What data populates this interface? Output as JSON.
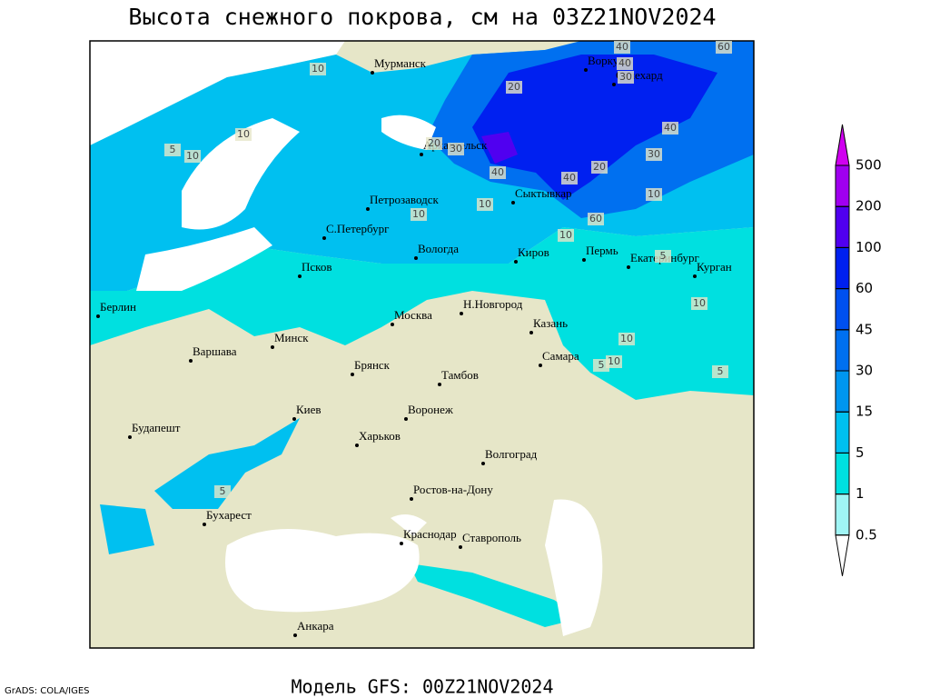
{
  "title": "Высота снежного покрова, см на 03Z21NOV2024",
  "footer": "Модель GFS: 00Z21NOV2024",
  "credit": "GrADS: COLA/IGES",
  "colorbar": {
    "levels": [
      0.5,
      1,
      5,
      15,
      30,
      45,
      60,
      100,
      200,
      500
    ],
    "colors": [
      "#ffffff",
      "#a0f5f5",
      "#00e0e0",
      "#00c0f0",
      "#0096f0",
      "#0070f0",
      "#0050f0",
      "#0020f0",
      "#5000f0",
      "#a000f0",
      "#d000f0"
    ]
  },
  "cities": [
    "Мурманск",
    "Воркута",
    "Салехард",
    "Архангельск",
    "Сыктывкар",
    "Петрозаводск",
    "С.Петербург",
    "Вологда",
    "Киров",
    "Пермь",
    "Екатеринбург",
    "Курган",
    "Псков",
    "Берлин",
    "Н.Новгород",
    "Москва",
    "Казань",
    "Минск",
    "Варшава",
    "Самара",
    "Брянск",
    "Тамбов",
    "Киев",
    "Воронеж",
    "Харьков",
    "Волгоград",
    "Будапешт",
    "Ростов-на-Дону",
    "Бухарест",
    "Краснодар",
    "Ставрополь",
    "Анкара"
  ],
  "contour_labels": [
    40,
    60,
    10,
    20,
    40,
    30,
    10,
    5,
    10,
    20,
    30,
    40,
    40,
    30,
    20,
    40,
    10,
    10,
    10,
    60,
    10,
    5,
    10,
    10,
    10,
    5,
    5,
    5
  ]
}
